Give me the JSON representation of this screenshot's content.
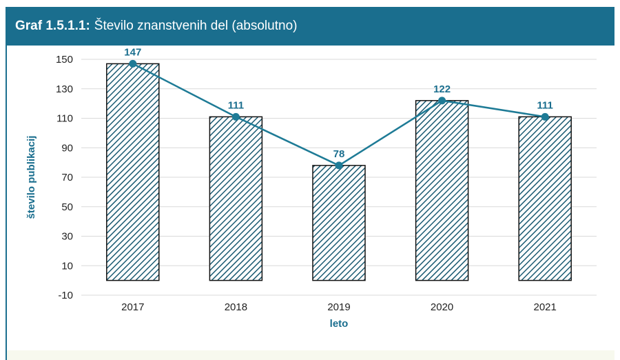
{
  "title": {
    "prefix": "Graf 1.5.1.1:",
    "text": "Število znanstvenih del (absolutno)"
  },
  "colors": {
    "accent": "#1a6e8e",
    "line": "#1e7b96",
    "bar_hatch": "#1a5a72"
  },
  "chart_data": {
    "type": "bar",
    "categories": [
      "2017",
      "2018",
      "2019",
      "2020",
      "2021"
    ],
    "values": [
      147,
      111,
      78,
      122,
      111
    ],
    "overlay_line": true,
    "xlabel": "leto",
    "ylabel": "število publikacij",
    "ylim": [
      -10,
      150
    ],
    "yticks": [
      "150",
      "130",
      "110",
      "90",
      "70",
      "50",
      "30",
      "10",
      "-10"
    ],
    "grid": true
  }
}
